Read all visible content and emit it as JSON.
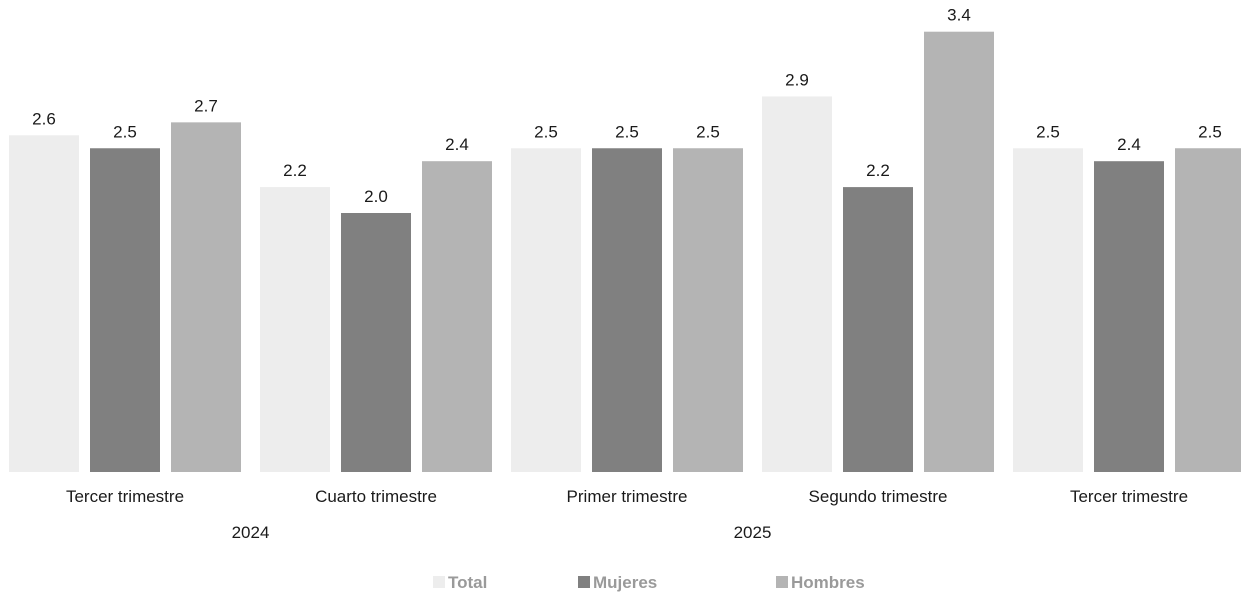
{
  "title": "",
  "chart_data": {
    "type": "bar",
    "title": "",
    "xlabel": "",
    "ylabel": "",
    "ylim": [
      0,
      3.4
    ],
    "grid": false,
    "legend_position": "bottom",
    "categories": [
      "Tercer trimestre",
      "Cuarto trimestre",
      "Primer trimestre",
      "Segundo trimestre",
      "Tercer trimestre"
    ],
    "groups": [
      {
        "label": "2024",
        "categories": [
          0,
          1
        ]
      },
      {
        "label": "2025",
        "categories": [
          2,
          3,
          4
        ]
      }
    ],
    "series": [
      {
        "name": "Total",
        "values": [
          2.6,
          2.2,
          2.5,
          2.9,
          2.5
        ],
        "labels": [
          "2.6",
          "2.2",
          "2.5",
          "2.9",
          "2.5"
        ],
        "color": "#ededed"
      },
      {
        "name": "Mujeres",
        "values": [
          2.5,
          2.0,
          2.5,
          2.2,
          2.4
        ],
        "labels": [
          "2.5",
          "2.0",
          "2.5",
          "2.2",
          "2.4"
        ],
        "color": "#808080"
      },
      {
        "name": "Hombres",
        "values": [
          2.7,
          2.4,
          2.5,
          3.4,
          2.5
        ],
        "labels": [
          "2.7",
          "2.4",
          "2.5",
          "3.4",
          "2.5"
        ],
        "color": "#b4b4b4"
      }
    ]
  }
}
